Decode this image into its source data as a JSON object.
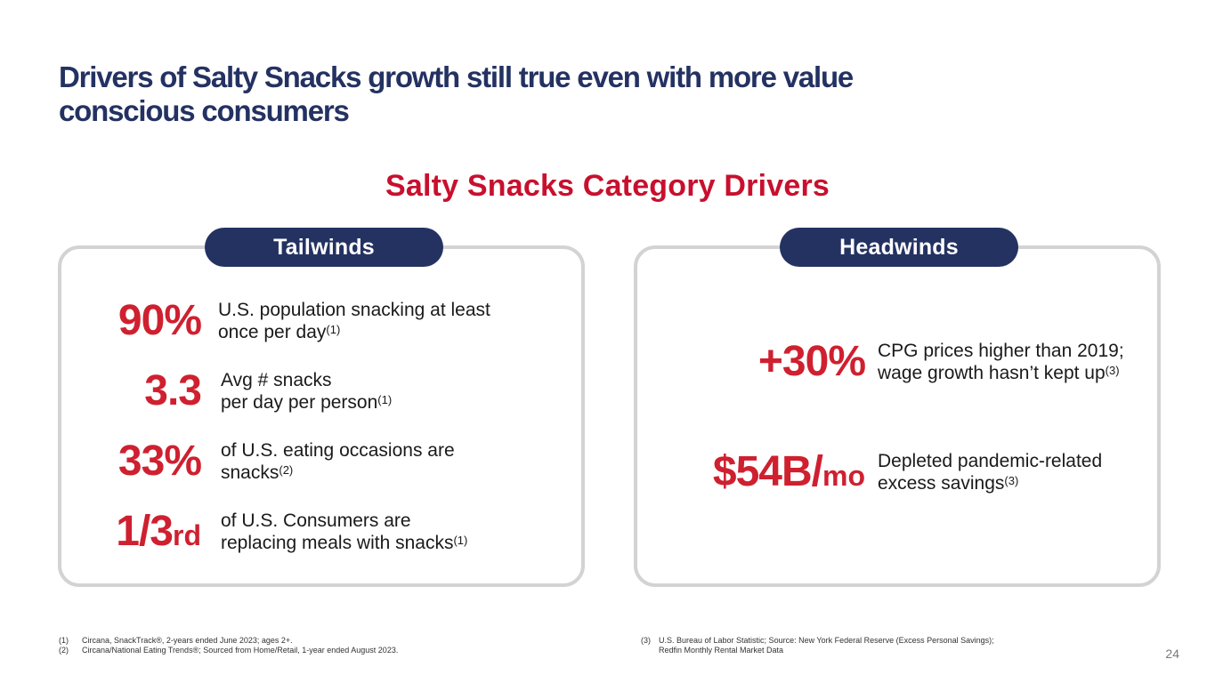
{
  "title": {
    "line1": "Drivers of Salty Snacks growth still true even with more value",
    "line2": "conscious consumers"
  },
  "subtitle": "Salty Snacks Category Drivers",
  "tailwinds": {
    "label": "Tailwinds",
    "stats": [
      {
        "value": "90%",
        "suffix": "",
        "line1": "U.S. population snacking at least",
        "line2": "once per day",
        "ref": "(1)"
      },
      {
        "value": "3.3",
        "suffix": "",
        "line1": "Avg # snacks",
        "line2": "per day per person",
        "ref": "(1)"
      },
      {
        "value": "33%",
        "suffix": "",
        "line1": "of U.S. eating occasions are",
        "line2": "snacks",
        "ref": "(2)"
      },
      {
        "value": "1/3",
        "suffix": "rd",
        "line1": "of U.S. Consumers are",
        "line2": "replacing meals with snacks",
        "ref": "(1)"
      }
    ]
  },
  "headwinds": {
    "label": "Headwinds",
    "stats": [
      {
        "value": "+30%",
        "suffix": "",
        "line1": "CPG prices higher than 2019;",
        "line2": "wage growth hasn’t kept up",
        "ref": "(3)"
      },
      {
        "value": "$54B/",
        "suffix": "mo",
        "line1": "Depleted pandemic-related",
        "line2": "excess savings",
        "ref": "(3)"
      }
    ]
  },
  "footnotes": {
    "left": [
      {
        "mark": "(1)",
        "text": "Circana, SnackTrack®, 2-years ended June 2023; ages 2+."
      },
      {
        "mark": "(2)",
        "text": "Circana/National Eating Trends®; Sourced from Home/Retail, 1-year ended August 2023."
      }
    ],
    "right": [
      {
        "mark": "(3)",
        "text": "U.S. Bureau of Labor Statistic; Source: New York Federal Reserve (Excess Personal Savings);"
      },
      {
        "mark": "",
        "text": "Redfin Monthly Rental Market Data"
      }
    ]
  },
  "page_number": "24",
  "colors": {
    "navy": "#243262",
    "red": "#cf2030",
    "title_red": "#c8102e",
    "border": "#d3d3d3"
  }
}
